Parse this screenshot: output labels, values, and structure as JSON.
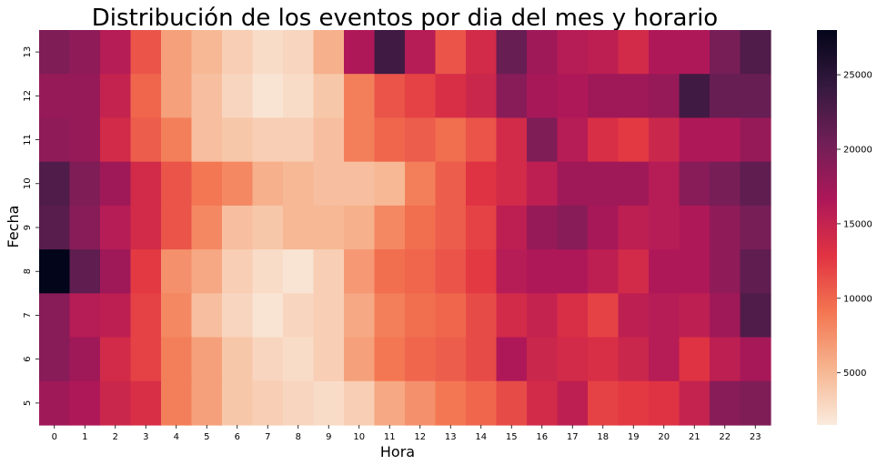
{
  "chart_data": {
    "type": "heatmap",
    "title": "Distribución de los eventos por dia del mes y horario",
    "xlabel": "Hora",
    "ylabel": "Fecha",
    "x": [
      "0",
      "1",
      "2",
      "3",
      "4",
      "5",
      "6",
      "7",
      "8",
      "9",
      "10",
      "11",
      "12",
      "13",
      "14",
      "15",
      "16",
      "17",
      "18",
      "19",
      "20",
      "21",
      "22",
      "23"
    ],
    "y": [
      "13",
      "12",
      "11",
      "10",
      "9",
      "8",
      "7",
      "6",
      "5"
    ],
    "values": [
      [
        19500,
        18500,
        16000,
        11000,
        6500,
        5000,
        3500,
        2500,
        3000,
        5500,
        16500,
        23500,
        16000,
        11000,
        14000,
        21000,
        17500,
        16000,
        15500,
        14000,
        16500,
        16500,
        20000,
        22500
      ],
      [
        18000,
        18000,
        15000,
        10000,
        6500,
        4500,
        3000,
        2000,
        2500,
        4000,
        8500,
        11000,
        12000,
        13500,
        14500,
        19000,
        17000,
        16500,
        17500,
        17500,
        18000,
        23500,
        21000,
        21000
      ],
      [
        18500,
        18000,
        14000,
        10500,
        8500,
        4500,
        4000,
        3500,
        3500,
        4500,
        8500,
        10000,
        10500,
        9500,
        11000,
        14000,
        19500,
        16000,
        13500,
        12500,
        14500,
        16500,
        16500,
        18000
      ],
      [
        22500,
        19500,
        17500,
        14000,
        11000,
        9000,
        8000,
        5500,
        5000,
        4500,
        4500,
        5000,
        8500,
        10500,
        13000,
        14000,
        15500,
        17500,
        17500,
        17500,
        16000,
        19000,
        20000,
        21500
      ],
      [
        22000,
        19000,
        16000,
        14000,
        11000,
        8000,
        4500,
        4000,
        5000,
        5000,
        5500,
        8000,
        9500,
        10500,
        12000,
        15500,
        18000,
        19000,
        17000,
        15500,
        16000,
        16500,
        18500,
        20000
      ],
      [
        28000,
        21500,
        17500,
        12500,
        7500,
        6000,
        3500,
        2500,
        2000,
        3500,
        7000,
        9500,
        10000,
        11000,
        12500,
        16000,
        16500,
        16500,
        15500,
        14000,
        16500,
        16500,
        18500,
        21500
      ],
      [
        19000,
        16000,
        15500,
        12000,
        8000,
        4500,
        3000,
        2000,
        3000,
        3500,
        6000,
        8500,
        9500,
        10000,
        11500,
        14000,
        15000,
        13500,
        12000,
        15500,
        16000,
        15500,
        17500,
        22500
      ],
      [
        19000,
        17500,
        14000,
        12000,
        8500,
        6500,
        4000,
        3000,
        2500,
        3500,
        6500,
        9000,
        10000,
        10500,
        11500,
        16500,
        14500,
        14000,
        13500,
        14500,
        16000,
        13000,
        15500,
        17000
      ],
      [
        17500,
        16500,
        14500,
        13500,
        8500,
        6500,
        4000,
        3500,
        3000,
        2500,
        3500,
        6000,
        7500,
        9000,
        10000,
        11500,
        14000,
        15500,
        12000,
        12500,
        13000,
        15000,
        19000,
        19500
      ]
    ],
    "vmin": 1500,
    "vmax": 28000,
    "colorbar_ticks": [
      5000,
      10000,
      15000,
      20000,
      25000
    ],
    "colorbar_tick_labels": [
      "5000",
      "10000",
      "15000",
      "20000",
      "25000"
    ],
    "colormap": "rocket",
    "colormap_stops": [
      "#faebdd",
      "#f6b48f",
      "#f37651",
      "#e13342",
      "#ad1759",
      "#701f57",
      "#35193e",
      "#03051a"
    ]
  }
}
